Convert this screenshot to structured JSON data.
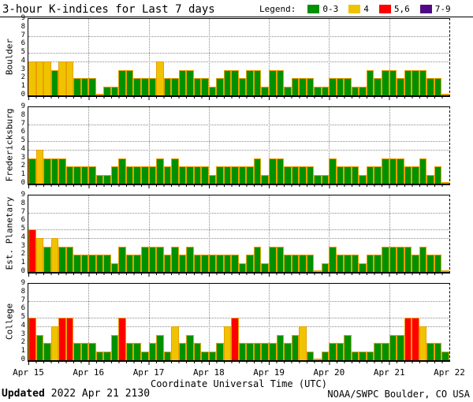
{
  "title": "3-hour K-indices for Last 7 days",
  "legend": {
    "label": "Legend:",
    "items": [
      {
        "label": "0-3",
        "color": "#009100"
      },
      {
        "label": "4",
        "color": "#F0C300"
      },
      {
        "label": "5,6",
        "color": "#FF0000"
      },
      {
        "label": "7-9",
        "color": "#500A87"
      }
    ]
  },
  "xlabel": "Coordinate Universal Time (UTC)",
  "footer": {
    "updated_label": "Updated",
    "updated_value": "2022 Apr 21 2130",
    "credit": "NOAA/SWPC Boulder, CO USA"
  },
  "colors": {
    "green": "#009100",
    "yellow": "#F0C300",
    "red": "#FF0000",
    "purple": "#500A87",
    "bar_outline": "#E8A000",
    "gridline": "#8a8a8a"
  },
  "chart_data": {
    "type": "bar",
    "title": "3-hour K-indices for Last 7 days",
    "xlabel": "Coordinate Universal Time (UTC)",
    "x_categories": [
      "Apr 15",
      "Apr 16",
      "Apr 17",
      "Apr 18",
      "Apr 19",
      "Apr 20",
      "Apr 21",
      "Apr 22"
    ],
    "bars_per_day": 8,
    "interval_hours": 3,
    "ylim": [
      0,
      9
    ],
    "y_ticks": [
      9,
      8,
      7,
      6,
      5,
      4,
      3,
      2,
      1,
      0
    ],
    "y_gridlines_at": [
      4,
      5,
      7
    ],
    "color_rules": [
      {
        "k_range": "0-3",
        "color": "#009100"
      },
      {
        "k_range": "4",
        "color": "#F0C300"
      },
      {
        "k_range": "5,6",
        "color": "#FF0000"
      },
      {
        "k_range": "7-9",
        "color": "#500A87"
      }
    ],
    "panels": [
      {
        "station": "Boulder",
        "values": [
          4,
          4,
          4,
          3,
          4,
          4,
          2,
          2,
          2,
          0,
          1,
          1,
          3,
          3,
          2,
          2,
          2,
          4,
          2,
          2,
          3,
          3,
          2,
          2,
          1,
          2,
          3,
          3,
          2,
          3,
          3,
          1,
          3,
          3,
          1,
          2,
          2,
          2,
          1,
          1,
          2,
          2,
          2,
          1,
          1,
          3,
          2,
          3,
          3,
          2,
          3,
          3,
          3,
          2,
          2,
          0
        ]
      },
      {
        "station": "Fredericksburg",
        "values": [
          3,
          4,
          3,
          3,
          3,
          2,
          2,
          2,
          2,
          1,
          1,
          2,
          3,
          2,
          2,
          2,
          2,
          3,
          2,
          3,
          2,
          2,
          2,
          2,
          1,
          2,
          2,
          2,
          2,
          2,
          3,
          1,
          3,
          3,
          2,
          2,
          2,
          2,
          1,
          1,
          3,
          2,
          2,
          2,
          1,
          2,
          2,
          3,
          3,
          3,
          2,
          2,
          3,
          1,
          2,
          0
        ]
      },
      {
        "station": "Est. Planetary",
        "values": [
          5,
          4,
          3,
          4,
          3,
          3,
          2,
          2,
          2,
          2,
          2,
          1,
          3,
          2,
          2,
          3,
          3,
          3,
          2,
          3,
          2,
          3,
          2,
          2,
          2,
          2,
          2,
          2,
          1,
          2,
          3,
          1,
          3,
          3,
          2,
          2,
          2,
          2,
          0,
          1,
          3,
          2,
          2,
          2,
          1,
          2,
          2,
          3,
          3,
          3,
          3,
          2,
          3,
          2,
          2,
          0
        ]
      },
      {
        "station": "College",
        "values": [
          5,
          3,
          2,
          4,
          5,
          5,
          2,
          2,
          2,
          1,
          1,
          3,
          5,
          2,
          2,
          1,
          2,
          3,
          1,
          4,
          2,
          3,
          2,
          1,
          1,
          2,
          4,
          5,
          2,
          2,
          2,
          2,
          2,
          3,
          2,
          3,
          4,
          1,
          0,
          1,
          2,
          2,
          3,
          1,
          1,
          1,
          2,
          2,
          3,
          3,
          5,
          5,
          4,
          2,
          2,
          1
        ]
      }
    ]
  }
}
